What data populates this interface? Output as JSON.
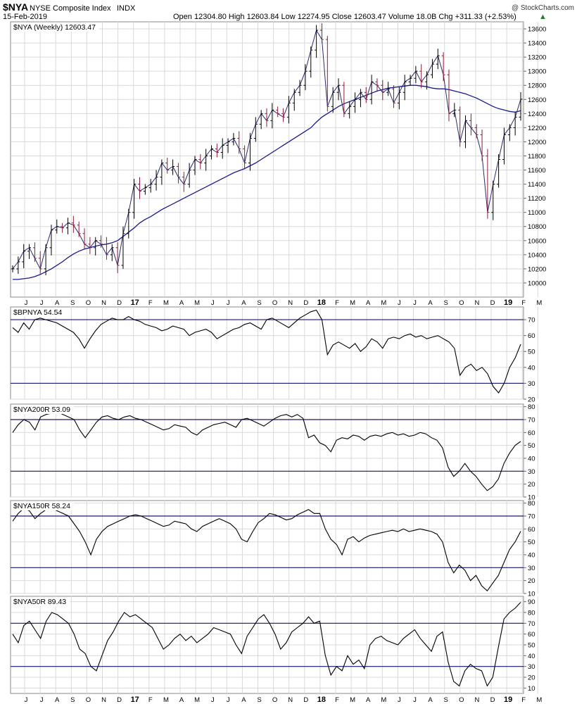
{
  "header": {
    "symbol": "$NYA",
    "name": "NYSE Composite Index",
    "exchange": "INDX",
    "date": "15-Feb-2019",
    "watermark": "@ StockCharts.com",
    "stats": "Open 12304.80  High 12603.84  Low 12274.95  Close 12603.47  Volume 18.0B  Chg +311.33 (+2.53%)",
    "arrow": "▲"
  },
  "colors": {
    "price": "#000000",
    "ma": "#1a1a8c",
    "down_bar": "#8b1a3a",
    "ref_line": "#1a1a6e",
    "grid": "#d9d9d9"
  },
  "x_axis": {
    "labels": [
      {
        "t": "J",
        "bold": false
      },
      {
        "t": "J",
        "bold": false
      },
      {
        "t": "A",
        "bold": false
      },
      {
        "t": "S",
        "bold": false
      },
      {
        "t": "O",
        "bold": false
      },
      {
        "t": "N",
        "bold": false
      },
      {
        "t": "D",
        "bold": false
      },
      {
        "t": "17",
        "bold": true
      },
      {
        "t": "F",
        "bold": false
      },
      {
        "t": "M",
        "bold": false
      },
      {
        "t": "A",
        "bold": false
      },
      {
        "t": "M",
        "bold": false
      },
      {
        "t": "J",
        "bold": false
      },
      {
        "t": "J",
        "bold": false
      },
      {
        "t": "A",
        "bold": false
      },
      {
        "t": "S",
        "bold": false
      },
      {
        "t": "O",
        "bold": false
      },
      {
        "t": "N",
        "bold": false
      },
      {
        "t": "D",
        "bold": false
      },
      {
        "t": "18",
        "bold": true
      },
      {
        "t": "F",
        "bold": false
      },
      {
        "t": "M",
        "bold": false
      },
      {
        "t": "A",
        "bold": false
      },
      {
        "t": "M",
        "bold": false
      },
      {
        "t": "J",
        "bold": false
      },
      {
        "t": "J",
        "bold": false
      },
      {
        "t": "A",
        "bold": false
      },
      {
        "t": "S",
        "bold": false
      },
      {
        "t": "O",
        "bold": false
      },
      {
        "t": "N",
        "bold": false
      },
      {
        "t": "D",
        "bold": false
      },
      {
        "t": "19",
        "bold": true
      },
      {
        "t": "F",
        "bold": false
      },
      {
        "t": "M",
        "bold": false
      }
    ]
  },
  "chart_data": [
    {
      "type": "ohlc",
      "title": "$NYA (Weekly) 12603.47",
      "ylim": [
        9800,
        13700
      ],
      "yticks": [
        10000,
        10200,
        10400,
        10600,
        10800,
        11000,
        11200,
        11400,
        11600,
        11800,
        12000,
        12200,
        12400,
        12600,
        12800,
        13000,
        13200,
        13400,
        13600
      ],
      "close": [
        10200,
        10300,
        10450,
        10500,
        10350,
        10200,
        10500,
        10750,
        10800,
        10780,
        10850,
        10820,
        10700,
        10550,
        10500,
        10600,
        10550,
        10400,
        10500,
        10250,
        10700,
        11000,
        11400,
        11300,
        11350,
        11400,
        11500,
        11700,
        11600,
        11650,
        11500,
        11400,
        11600,
        11750,
        11700,
        11800,
        11900,
        11850,
        11950,
        12000,
        12050,
        11900,
        11700,
        12050,
        12250,
        12400,
        12300,
        12450,
        12400,
        12350,
        12550,
        12700,
        12800,
        13000,
        13300,
        13580,
        13450,
        12500,
        12700,
        12800,
        12400,
        12500,
        12600,
        12700,
        12600,
        12850,
        12800,
        12700,
        12750,
        12550,
        12700,
        12850,
        12900,
        13000,
        12850,
        12950,
        13100,
        13220,
        12950,
        12400,
        12450,
        12000,
        12300,
        12200,
        12100,
        11800,
        11000,
        11400,
        11750,
        12100,
        12200,
        12350,
        12603
      ],
      "ma": [
        10050,
        10050,
        10060,
        10070,
        10090,
        10120,
        10160,
        10200,
        10250,
        10300,
        10360,
        10410,
        10450,
        10480,
        10500,
        10520,
        10540,
        10550,
        10570,
        10600,
        10660,
        10720,
        10780,
        10850,
        10900,
        10940,
        10990,
        11040,
        11080,
        11120,
        11160,
        11200,
        11240,
        11280,
        11320,
        11360,
        11400,
        11440,
        11480,
        11520,
        11560,
        11590,
        11620,
        11660,
        11700,
        11750,
        11800,
        11850,
        11900,
        11950,
        12000,
        12050,
        12100,
        12150,
        12200,
        12280,
        12350,
        12400,
        12450,
        12500,
        12540,
        12570,
        12600,
        12630,
        12660,
        12690,
        12720,
        12740,
        12760,
        12770,
        12780,
        12790,
        12800,
        12800,
        12790,
        12780,
        12760,
        12750,
        12750,
        12740,
        12720,
        12700,
        12680,
        12650,
        12620,
        12580,
        12540,
        12500,
        12470,
        12450,
        12430,
        12420,
        12440
      ]
    },
    {
      "type": "line",
      "title": "$BPNYA 54.54",
      "ylim": [
        20,
        78
      ],
      "yticks": [
        20,
        30,
        40,
        50,
        60,
        70
      ],
      "ref_lines": [
        30,
        70
      ],
      "values": [
        65,
        62,
        68,
        64,
        70,
        71,
        70,
        69,
        68,
        66,
        64,
        62,
        58,
        52,
        58,
        63,
        67,
        69,
        71,
        70,
        70,
        72,
        70,
        69,
        67,
        66,
        65,
        63,
        64,
        66,
        65,
        64,
        60,
        62,
        63,
        64,
        62,
        58,
        60,
        62,
        64,
        65,
        67,
        68,
        66,
        64,
        70,
        71,
        69,
        67,
        65,
        68,
        71,
        73,
        75,
        76,
        70,
        48,
        54,
        56,
        54,
        52,
        55,
        50,
        53,
        58,
        56,
        52,
        58,
        59,
        58,
        60,
        61,
        59,
        60,
        58,
        59,
        60,
        58,
        56,
        52,
        35,
        40,
        42,
        38,
        40,
        36,
        28,
        24,
        30,
        40,
        46,
        54.54
      ]
    },
    {
      "type": "line",
      "title": "$NYA200R 53.09",
      "ylim": [
        10,
        82
      ],
      "yticks": [
        10,
        20,
        30,
        40,
        50,
        60,
        70,
        80
      ],
      "ref_lines": [
        30,
        70
      ],
      "values": [
        60,
        66,
        70,
        68,
        62,
        72,
        74,
        75,
        76,
        74,
        72,
        70,
        62,
        56,
        62,
        68,
        72,
        73,
        71,
        70,
        72,
        73,
        71,
        70,
        68,
        66,
        64,
        62,
        63,
        66,
        65,
        64,
        60,
        58,
        62,
        64,
        66,
        67,
        68,
        66,
        64,
        70,
        71,
        69,
        67,
        65,
        68,
        71,
        73,
        74,
        72,
        74,
        71,
        56,
        58,
        52,
        50,
        45,
        54,
        56,
        55,
        58,
        57,
        54,
        57,
        58,
        57,
        59,
        60,
        58,
        59,
        57,
        58,
        60,
        59,
        56,
        54,
        48,
        33,
        26,
        30,
        36,
        30,
        26,
        20,
        15,
        18,
        24,
        36,
        44,
        50,
        53.09
      ]
    },
    {
      "type": "line",
      "title": "$NYA150R 58.24",
      "ylim": [
        10,
        82
      ],
      "yticks": [
        10,
        20,
        30,
        40,
        50,
        60,
        70,
        80
      ],
      "ref_lines": [
        30,
        70
      ],
      "values": [
        66,
        72,
        76,
        74,
        68,
        72,
        75,
        76,
        74,
        72,
        70,
        64,
        58,
        50,
        40,
        52,
        58,
        62,
        64,
        66,
        68,
        70,
        71,
        70,
        68,
        66,
        64,
        62,
        63,
        66,
        65,
        64,
        60,
        58,
        62,
        64,
        66,
        68,
        66,
        64,
        60,
        52,
        50,
        58,
        65,
        68,
        72,
        71,
        69,
        67,
        68,
        71,
        73,
        75,
        72,
        72,
        60,
        52,
        48,
        40,
        52,
        54,
        50,
        53,
        55,
        56,
        57,
        58,
        59,
        58,
        60,
        58,
        59,
        60,
        59,
        58,
        56,
        50,
        34,
        26,
        32,
        28,
        20,
        24,
        16,
        12,
        18,
        24,
        34,
        44,
        50,
        58.24
      ]
    },
    {
      "type": "line",
      "title": "$NYA50R 89.43",
      "ylim": [
        5,
        95
      ],
      "yticks": [
        10,
        20,
        30,
        40,
        50,
        60,
        70,
        80,
        90
      ],
      "ref_lines": [
        30,
        70
      ],
      "values": [
        60,
        52,
        68,
        72,
        64,
        56,
        72,
        80,
        78,
        74,
        70,
        60,
        46,
        42,
        30,
        26,
        40,
        54,
        62,
        72,
        80,
        76,
        78,
        74,
        70,
        66,
        56,
        46,
        50,
        56,
        60,
        54,
        58,
        52,
        56,
        60,
        66,
        64,
        62,
        60,
        50,
        42,
        58,
        66,
        74,
        78,
        70,
        60,
        46,
        52,
        62,
        66,
        70,
        76,
        70,
        72,
        40,
        22,
        30,
        26,
        40,
        32,
        36,
        28,
        50,
        56,
        58,
        54,
        52,
        50,
        56,
        60,
        64,
        56,
        50,
        44,
        58,
        62,
        34,
        16,
        12,
        26,
        32,
        28,
        26,
        12,
        20,
        48,
        74,
        80,
        84,
        89.43
      ]
    }
  ]
}
